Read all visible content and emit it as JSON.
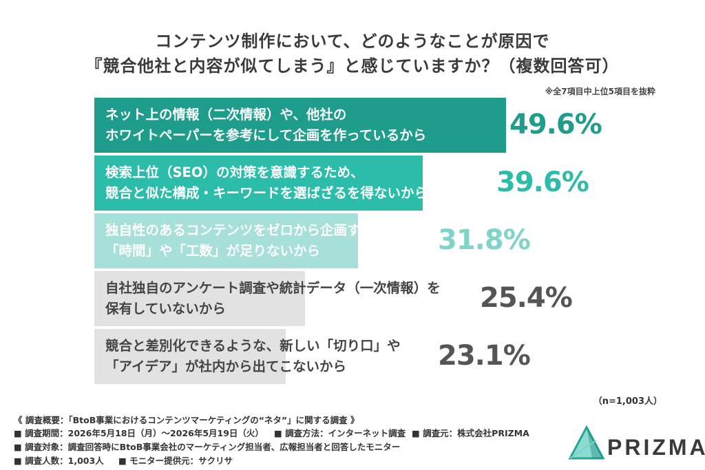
{
  "header": {
    "title_line1": "コンテンツ制作において、どのようなことが原因で",
    "title_line2": "『競合他社と内容が似てしまう』と感じていますか？（複数回答可）",
    "note": "※全7項目中上位5項目を抜粋"
  },
  "chart_data": {
    "type": "bar",
    "orientation": "horizontal",
    "title": "コンテンツ制作において、どのようなことが原因で『競合他社と内容が似てしまう』と感じていますか？（複数回答可）",
    "xlabel": "",
    "ylabel": "",
    "unit": "%",
    "xlim": [
      0,
      60
    ],
    "grid": false,
    "categories": [
      [
        "ネット上の情報（二次情報）や、他社の",
        "ホワイトペーパーを参考にして企画を作っているから"
      ],
      [
        "検索上位（SEO）の対策を意識するため、",
        "競合と似た構成・キーワードを選ばざるを得ないから"
      ],
      [
        "独自性のあるコンテンツをゼロから企画する",
        "「時間」や「工数」が足りないから"
      ],
      [
        "自社独自のアンケート調査や統計データ（一次情報）を",
        "保有していないから"
      ],
      [
        "競合と差別化できるような、新しい「切り口」や",
        "「アイデア」が社内から出てこないから"
      ]
    ],
    "values": [
      49.6,
      39.6,
      31.8,
      25.4,
      23.1
    ],
    "value_labels": [
      "49.6%",
      "39.6%",
      "31.8%",
      "25.4%",
      "23.1%"
    ],
    "colors": {
      "bars": [
        "#1e9c8c",
        "#2bbdaa",
        "#a6e0d8",
        "#e2e2e2",
        "#e2e2e2"
      ],
      "label_text": [
        "#ffffff",
        "#ffffff",
        "#ffffff",
        "#444444",
        "#444444"
      ],
      "value_text": [
        "#1e9c8c",
        "#2bbdaa",
        "#7fd3c8",
        "#555555",
        "#555555"
      ]
    }
  },
  "sample_size": "（n=1,003人）",
  "footer": {
    "line1": "《 調査概要：「BtoB事業におけるコンテンツマーケティングの“ネタ”」に関する調査 》",
    "period": "■ 調査期間：2026年5月18日（月）〜2026年5月19日（火）",
    "method": "■ 調査方法：インターネット調査",
    "source": "■ 調査元：株式会社PRIZMA",
    "target": "■ 調査対象：調査回答時にBtoB事業会社のマーケティング担当者、広報担当者と回答したモニター",
    "count": "■ 調査人数：1,003人",
    "provider": "■ モニター提供元：サクリサ"
  },
  "logo": {
    "text": "PRIZMA",
    "icon": "prism-logo-icon",
    "colors": [
      "#2bbdaa",
      "#1e9c8c",
      "#7fd3c8"
    ]
  }
}
